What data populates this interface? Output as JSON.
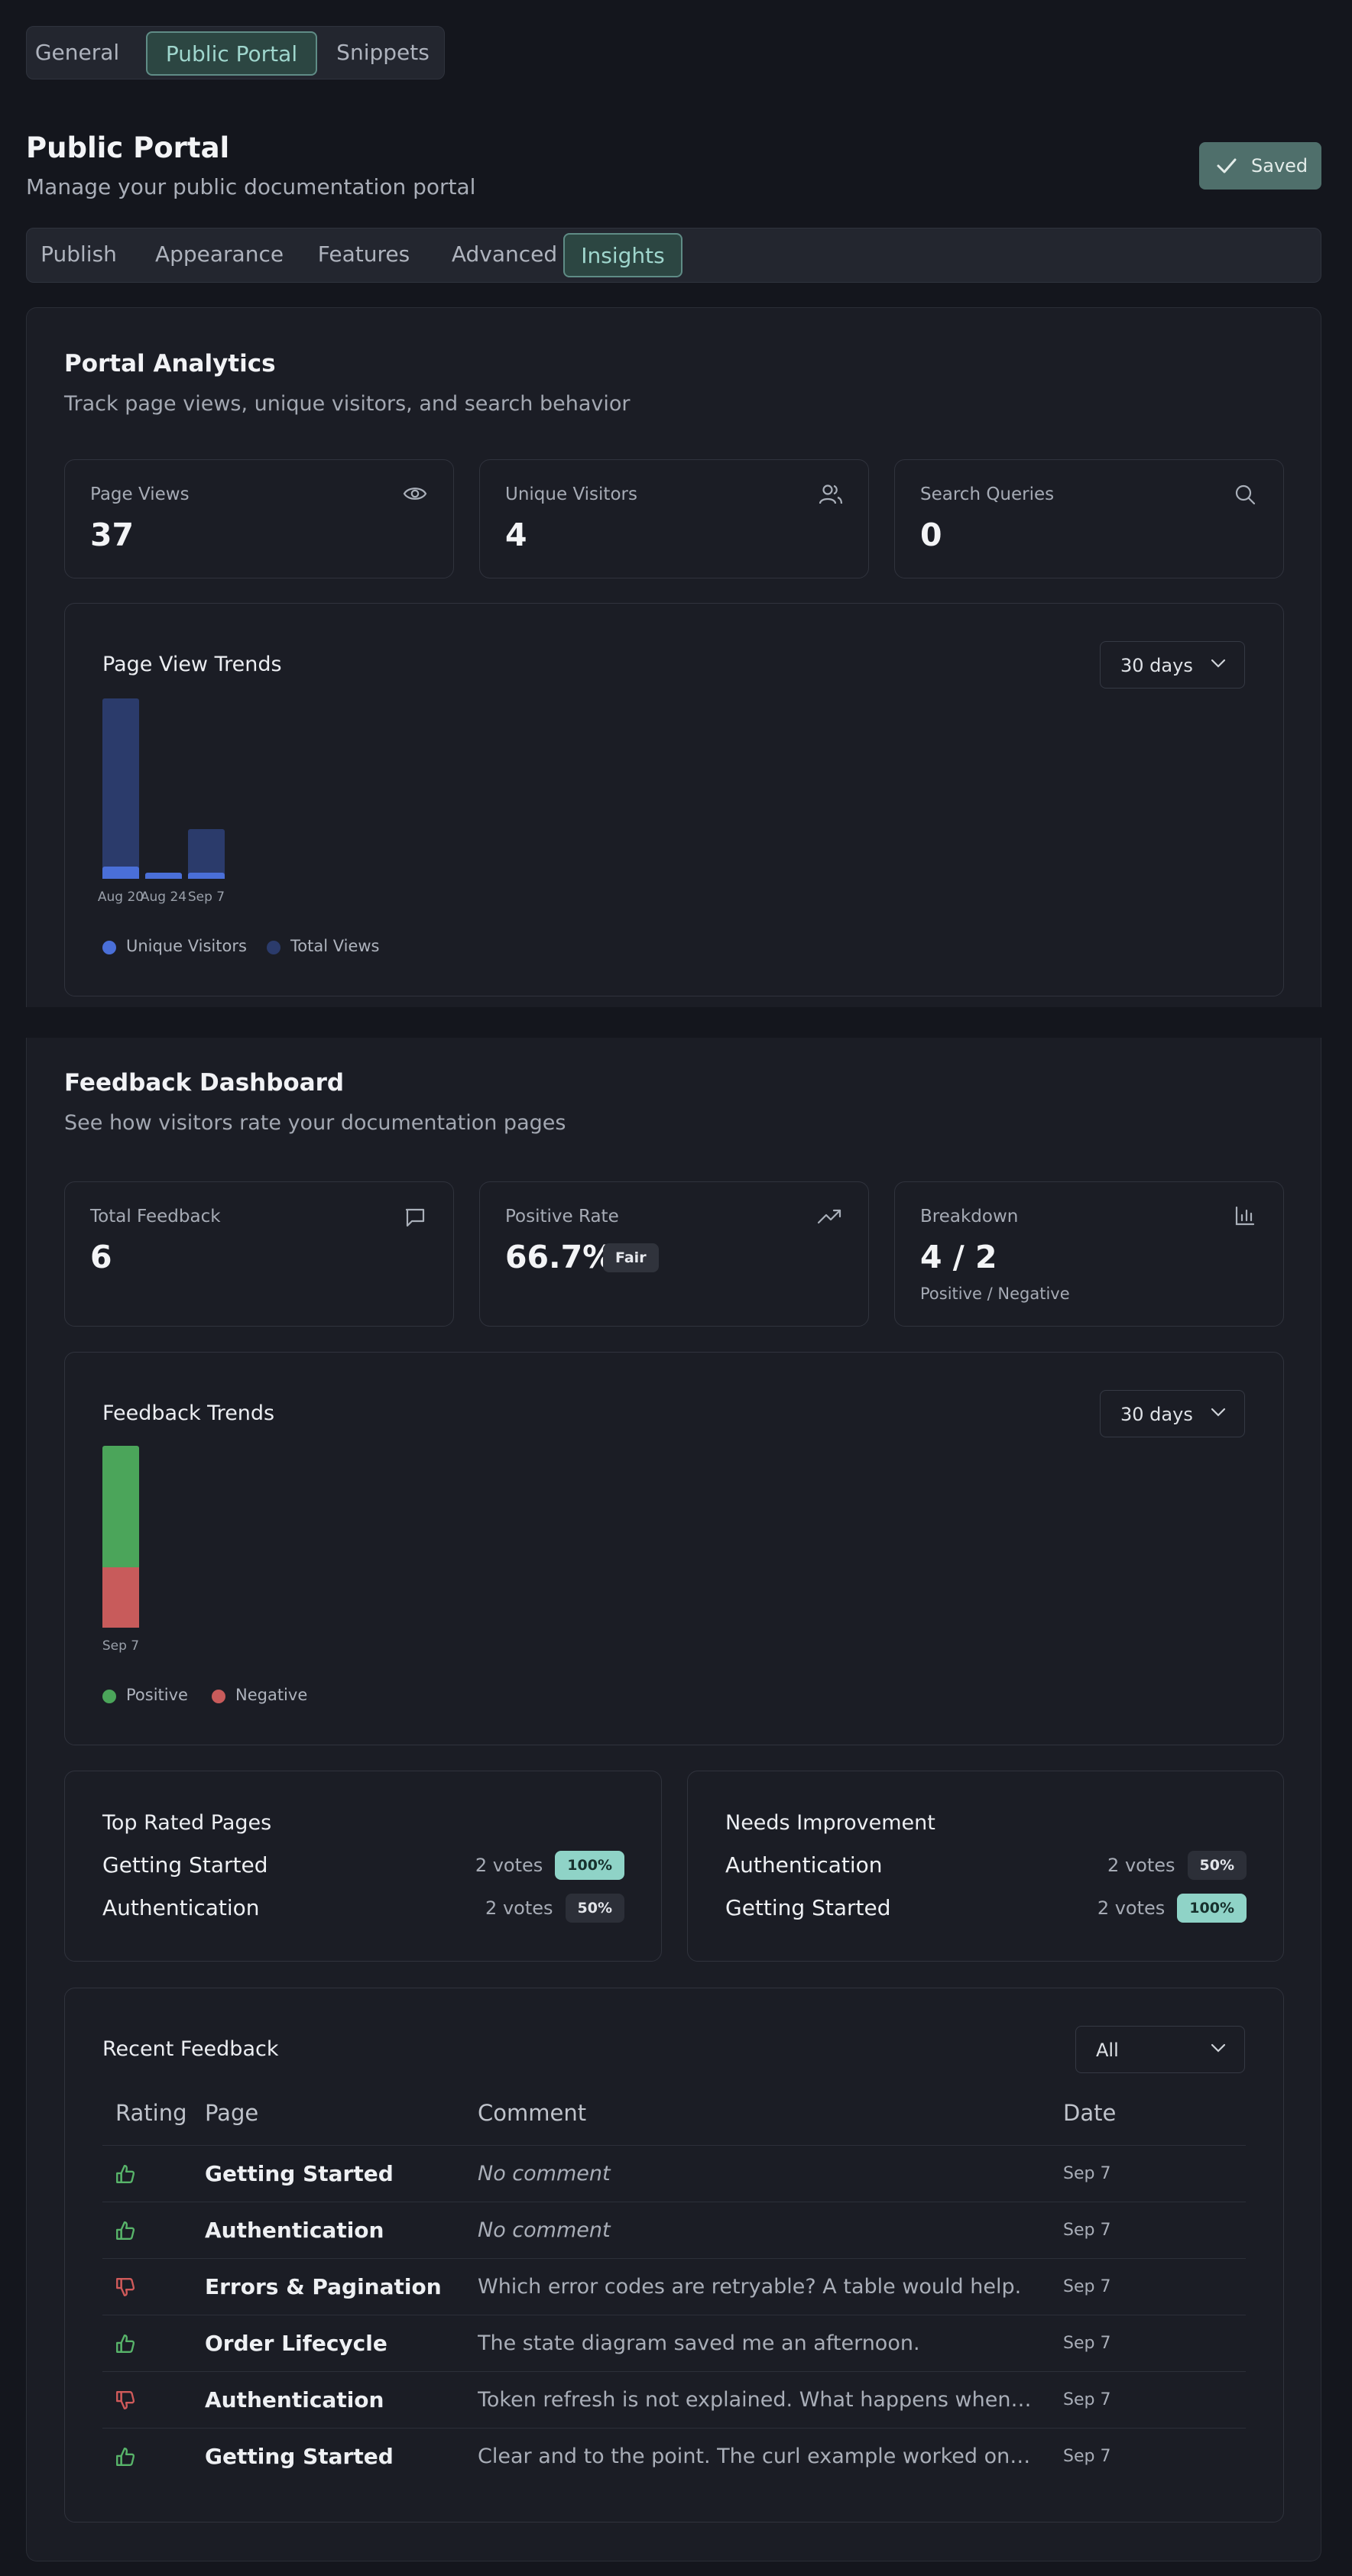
{
  "top_tabs": [
    "General",
    "Public Portal",
    "Snippets"
  ],
  "page": {
    "title": "Public Portal",
    "subtitle": "Manage your public documentation portal",
    "saved_label": "Saved"
  },
  "sub_tabs": [
    "Publish",
    "Appearance",
    "Features",
    "Advanced",
    "Insights"
  ],
  "analytics": {
    "title": "Portal Analytics",
    "description": "Track page views, unique visitors, and search behavior",
    "stats": [
      {
        "label": "Page Views",
        "value": "37",
        "icon": "eye-icon"
      },
      {
        "label": "Unique Visitors",
        "value": "4",
        "icon": "users-icon"
      },
      {
        "label": "Search Queries",
        "value": "0",
        "icon": "search-icon"
      }
    ],
    "trends": {
      "title": "Page View Trends",
      "range": "30 days",
      "legend": [
        "Unique Visitors",
        "Total Views"
      ]
    }
  },
  "feedback": {
    "title": "Feedback Dashboard",
    "description": "See how visitors rate your documentation pages",
    "stats": {
      "total_label": "Total Feedback",
      "total_value": "6",
      "positive_label": "Positive Rate",
      "positive_value": "66.7%",
      "positive_badge": "Fair",
      "breakdown_label": "Breakdown",
      "breakdown_value": "4 / 2",
      "breakdown_sub": "Positive / Negative"
    },
    "trends": {
      "title": "Feedback Trends",
      "range": "30 days",
      "legend": [
        "Positive",
        "Negative"
      ]
    },
    "top_rated": {
      "title": "Top Rated Pages",
      "rows": [
        {
          "page": "Getting Started",
          "votes": "2 votes",
          "pct": "100%"
        },
        {
          "page": "Authentication",
          "votes": "2 votes",
          "pct": "50%"
        }
      ]
    },
    "needs_improvement": {
      "title": "Needs Improvement",
      "rows": [
        {
          "page": "Authentication",
          "votes": "2 votes",
          "pct": "50%"
        },
        {
          "page": "Getting Started",
          "votes": "2 votes",
          "pct": "100%"
        }
      ]
    },
    "recent": {
      "title": "Recent Feedback",
      "filter": "All",
      "headers": [
        "Rating",
        "Page",
        "Comment",
        "Date"
      ],
      "rows": [
        {
          "rating": "up",
          "page": "Getting Started",
          "comment": "No comment",
          "date": "Sep 7"
        },
        {
          "rating": "up",
          "page": "Authentication",
          "comment": "No comment",
          "date": "Sep 7"
        },
        {
          "rating": "down",
          "page": "Errors & Pagination",
          "comment": "Which error codes are retryable? A table would help.",
          "date": "Sep 7"
        },
        {
          "rating": "up",
          "page": "Order Lifecycle",
          "comment": "The state diagram saved me an afternoon.",
          "date": "Sep 7"
        },
        {
          "rating": "down",
          "page": "Authentication",
          "comment": "Token refresh is not explained. What happens when the …",
          "date": "Sep 7"
        },
        {
          "rating": "up",
          "page": "Getting Started",
          "comment": "Clear and to the point. The curl example worked on the fi…",
          "date": "Sep 7"
        }
      ]
    }
  },
  "chart_data": [
    {
      "type": "bar",
      "title": "Page View Trends",
      "categories": [
        "Aug 20",
        "Aug 24",
        "Sep 7"
      ],
      "series": [
        {
          "name": "Unique Visitors",
          "values": [
            2,
            1,
            1
          ]
        },
        {
          "name": "Total Views",
          "values": [
            29,
            1,
            8
          ]
        }
      ],
      "colors": [
        "#4a6fd8",
        "#2b3b6b"
      ],
      "legend": "bottom-left"
    },
    {
      "type": "bar",
      "title": "Feedback Trends",
      "categories": [
        "Sep 7"
      ],
      "series": [
        {
          "name": "Positive",
          "values": [
            4
          ]
        },
        {
          "name": "Negative",
          "values": [
            2
          ]
        }
      ],
      "stacked": true,
      "colors": [
        "#4ba55a",
        "#c85b5b"
      ],
      "legend": "bottom-left"
    }
  ]
}
